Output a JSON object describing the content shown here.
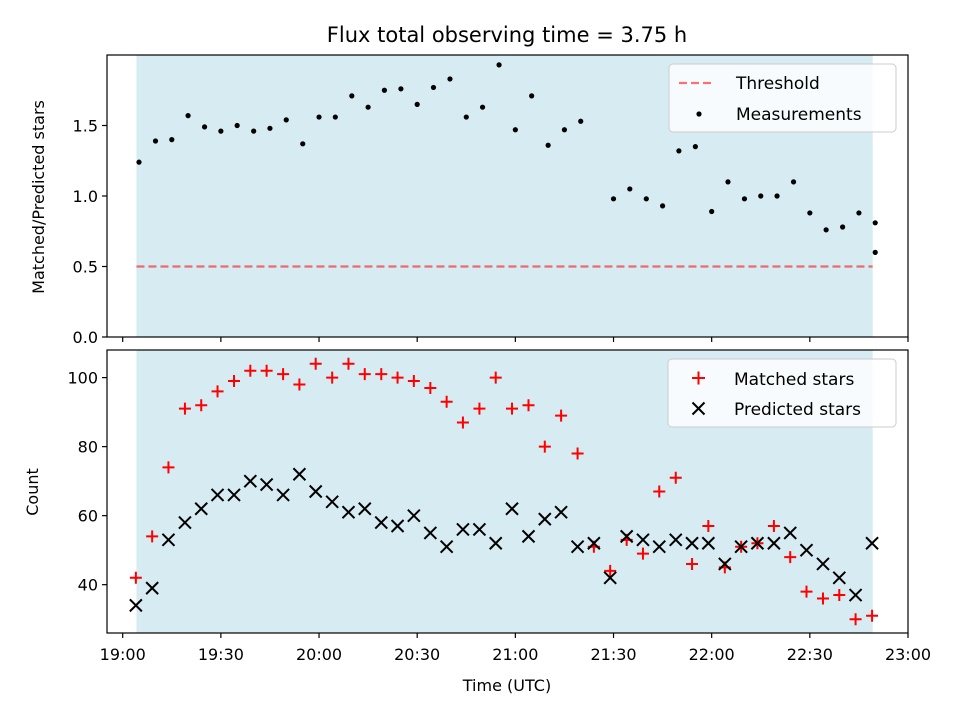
{
  "colors": {
    "observing_band": "#add8e6",
    "threshold": "#ff0000",
    "measurement": "#000000",
    "matched": "#ff0000",
    "predicted": "#000000"
  },
  "chart_data": [
    {
      "type": "scatter",
      "title": "Flux total observing time = 3.75 h",
      "xlabel": "",
      "ylabel": "Matched/Predicted stars",
      "xlim": [
        18.92,
        23.0
      ],
      "ylim": [
        0,
        2.0
      ],
      "yticks": [
        0.0,
        0.5,
        1.0,
        1.5
      ],
      "ytick_labels": [
        "0.0",
        "0.5",
        "1.0",
        "1.5"
      ],
      "observing_window": [
        19.07,
        22.82
      ],
      "threshold": {
        "name": "Threshold",
        "value": 0.5
      },
      "legend": [
        "Threshold",
        "Measurements"
      ],
      "legend_location": "top-right",
      "series": [
        {
          "name": "Measurements",
          "x": [
            19.083,
            19.167,
            19.25,
            19.333,
            19.417,
            19.5,
            19.583,
            19.667,
            19.75,
            19.833,
            19.917,
            20.0,
            20.083,
            20.167,
            20.25,
            20.333,
            20.417,
            20.5,
            20.583,
            20.667,
            20.75,
            20.833,
            20.917,
            21.0,
            21.083,
            21.167,
            21.25,
            21.333,
            21.5,
            21.583,
            21.667,
            21.75,
            21.833,
            21.917,
            22.0,
            22.083,
            22.167,
            22.25,
            22.333,
            22.417,
            22.5,
            22.583,
            22.667,
            22.75,
            22.833
          ],
          "values": [
            1.24,
            1.39,
            1.4,
            1.57,
            1.49,
            1.46,
            1.5,
            1.46,
            1.48,
            1.54,
            1.37,
            1.56,
            1.56,
            1.71,
            1.63,
            1.75,
            1.76,
            1.65,
            1.77,
            1.83,
            1.56,
            1.63,
            1.93,
            1.47,
            1.71,
            1.36,
            1.47,
            1.53,
            0.98,
            1.05,
            0.98,
            0.93,
            1.32,
            1.35,
            0.89,
            1.1,
            0.98,
            1.0,
            1.0,
            1.1,
            0.88,
            0.76,
            0.78,
            0.88,
            0.81
          ]
        }
      ],
      "extra_point": {
        "x": 22.833,
        "value": 0.6
      }
    },
    {
      "type": "scatter",
      "title": "",
      "xlabel": "Time (UTC)",
      "ylabel": "Count",
      "xlim": [
        18.92,
        23.0
      ],
      "ylim": [
        26,
        108
      ],
      "yticks": [
        40,
        60,
        80,
        100
      ],
      "ytick_labels": [
        "40",
        "60",
        "80",
        "100"
      ],
      "xticks": [
        19.0,
        19.5,
        20.0,
        20.5,
        21.0,
        21.5,
        22.0,
        22.5,
        23.0
      ],
      "xtick_labels": [
        "19:00",
        "19:30",
        "20:00",
        "20:30",
        "21:00",
        "21:30",
        "22:00",
        "22:30",
        "23:00"
      ],
      "observing_window": [
        19.07,
        22.82
      ],
      "legend": [
        "Matched stars",
        "Predicted stars"
      ],
      "legend_location": "top-right",
      "x": [
        19.067,
        19.15,
        19.233,
        19.317,
        19.4,
        19.483,
        19.567,
        19.65,
        19.733,
        19.817,
        19.9,
        19.983,
        20.067,
        20.15,
        20.233,
        20.317,
        20.4,
        20.483,
        20.567,
        20.65,
        20.733,
        20.817,
        20.9,
        20.983,
        21.067,
        21.15,
        21.233,
        21.317,
        21.4,
        21.483,
        21.567,
        21.65,
        21.733,
        21.817,
        21.9,
        21.983,
        22.067,
        22.15,
        22.233,
        22.317,
        22.4,
        22.483,
        22.567,
        22.65,
        22.733,
        22.817
      ],
      "series": [
        {
          "name": "Matched stars",
          "marker": "+",
          "values": [
            42,
            54,
            74,
            91,
            92,
            96,
            99,
            102,
            102,
            101,
            98,
            104,
            100,
            104,
            101,
            101,
            100,
            99,
            97,
            93,
            87,
            91,
            100,
            91,
            92,
            80,
            89,
            78,
            51,
            44,
            53,
            49,
            67,
            71,
            46,
            57,
            45,
            51,
            52,
            57,
            48,
            38,
            36,
            37,
            30,
            31
          ]
        },
        {
          "name": "Predicted stars",
          "marker": "x",
          "values": [
            34,
            39,
            53,
            58,
            62,
            66,
            66,
            70,
            69,
            66,
            72,
            67,
            64,
            61,
            62,
            58,
            57,
            60,
            55,
            51,
            56,
            56,
            52,
            62,
            54,
            59,
            61,
            51,
            52,
            42,
            54,
            53,
            51,
            53,
            52,
            52,
            46,
            51,
            52,
            52,
            55,
            50,
            46,
            42,
            37,
            52
          ]
        }
      ]
    }
  ]
}
